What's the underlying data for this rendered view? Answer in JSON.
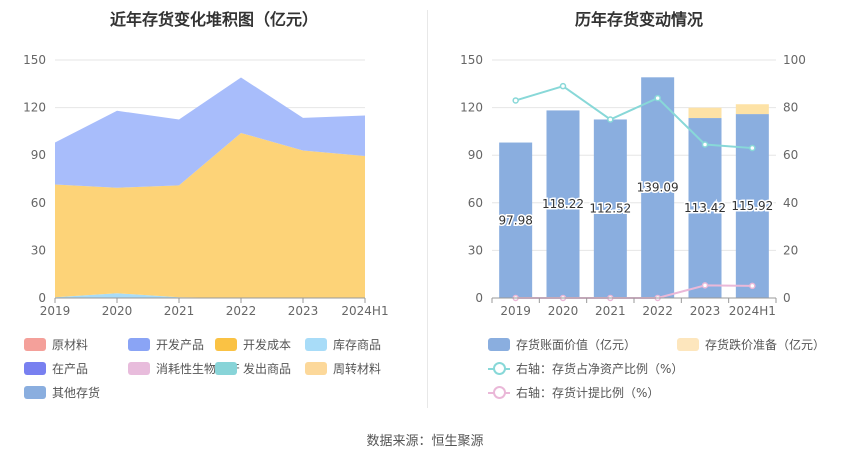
{
  "left_chart": {
    "title": "近年存货变化堆积图（亿元）",
    "legend": [
      {
        "label": "原材料",
        "color": "#f4a09a"
      },
      {
        "label": "开发产品",
        "color": "#8aa4f5"
      },
      {
        "label": "开发成本",
        "color": "#fac244"
      },
      {
        "label": "库存商品",
        "color": "#a8dcf8"
      },
      {
        "label": "在产品",
        "color": "#7880f0"
      },
      {
        "label": "消耗性生物资产",
        "color": "#e8bcdc"
      },
      {
        "label": "发出商品",
        "color": "#88d4d8"
      },
      {
        "label": "周转材料",
        "color": "#fcd89a"
      },
      {
        "label": "其他存货",
        "color": "#8aaedf"
      }
    ]
  },
  "right_chart": {
    "title": "历年存货变动情况",
    "legend": [
      {
        "label": "存货账面价值（亿元）",
        "color": "#8aaedf",
        "kind": "bar"
      },
      {
        "label": "存货跌价准备（亿元）",
        "color": "#fde6bd",
        "kind": "bar"
      },
      {
        "label": "右轴：存货占净资产比例（%）",
        "color": "#88d8d8",
        "kind": "line"
      },
      {
        "label": "右轴：存货计提比例（%）",
        "color": "#eab8d8",
        "kind": "line"
      }
    ]
  },
  "chart_data": [
    {
      "type": "area",
      "title": "近年存货变化堆积图（亿元）",
      "categories": [
        "2019",
        "2020",
        "2021",
        "2022",
        "2023",
        "2024H1"
      ],
      "ylim": [
        0,
        150
      ],
      "yticks": [
        0,
        30,
        60,
        90,
        120,
        150
      ],
      "grid": true,
      "legend_position": "bottom",
      "series": [
        {
          "name": "库存商品",
          "color": "#a8dcf8",
          "values": [
            0.5,
            3,
            0.5,
            0,
            0,
            0
          ]
        },
        {
          "name": "开发成本",
          "color": "#fdd378",
          "values": [
            71,
            66.5,
            70.5,
            104,
            93,
            89.5
          ]
        },
        {
          "name": "开发产品",
          "color": "#a8bdfb",
          "values": [
            26.5,
            48.5,
            41.5,
            35,
            20.5,
            25.5
          ]
        }
      ]
    },
    {
      "type": "bar",
      "title": "历年存货变动情况",
      "categories": [
        "2019",
        "2020",
        "2021",
        "2022",
        "2023",
        "2024H1"
      ],
      "ylim": [
        0,
        150
      ],
      "yticks": [
        0,
        30,
        60,
        90,
        120,
        150
      ],
      "y2lim": [
        0,
        100
      ],
      "y2ticks": [
        0,
        20,
        40,
        60,
        80,
        100
      ],
      "legend_position": "bottom",
      "series": [
        {
          "name": "存货账面价值（亿元）",
          "color": "#8aaedf",
          "axis": "left",
          "values": [
            97.98,
            118.22,
            112.52,
            139.09,
            113.42,
            115.92
          ],
          "labels": [
            "97.98",
            "118.22",
            "112.52",
            "139.09",
            "113.42",
            "115.92"
          ]
        },
        {
          "name": "存货跌价准备（亿元）",
          "color": "#fde2a6",
          "axis": "left",
          "values": [
            0,
            0,
            0,
            0,
            6.5,
            6.2
          ]
        },
        {
          "name": "右轴：存货占净资产比例（%）",
          "color": "#88d8d8",
          "axis": "right",
          "type": "line",
          "values": [
            83,
            89,
            75,
            84,
            64.5,
            63
          ]
        },
        {
          "name": "右轴：存货计提比例（%）",
          "color": "#eab8d8",
          "axis": "right",
          "type": "line",
          "values": [
            0,
            0,
            0,
            0,
            5.3,
            5.1
          ]
        }
      ]
    }
  ],
  "footer": {
    "source": "数据来源：恒生聚源"
  }
}
